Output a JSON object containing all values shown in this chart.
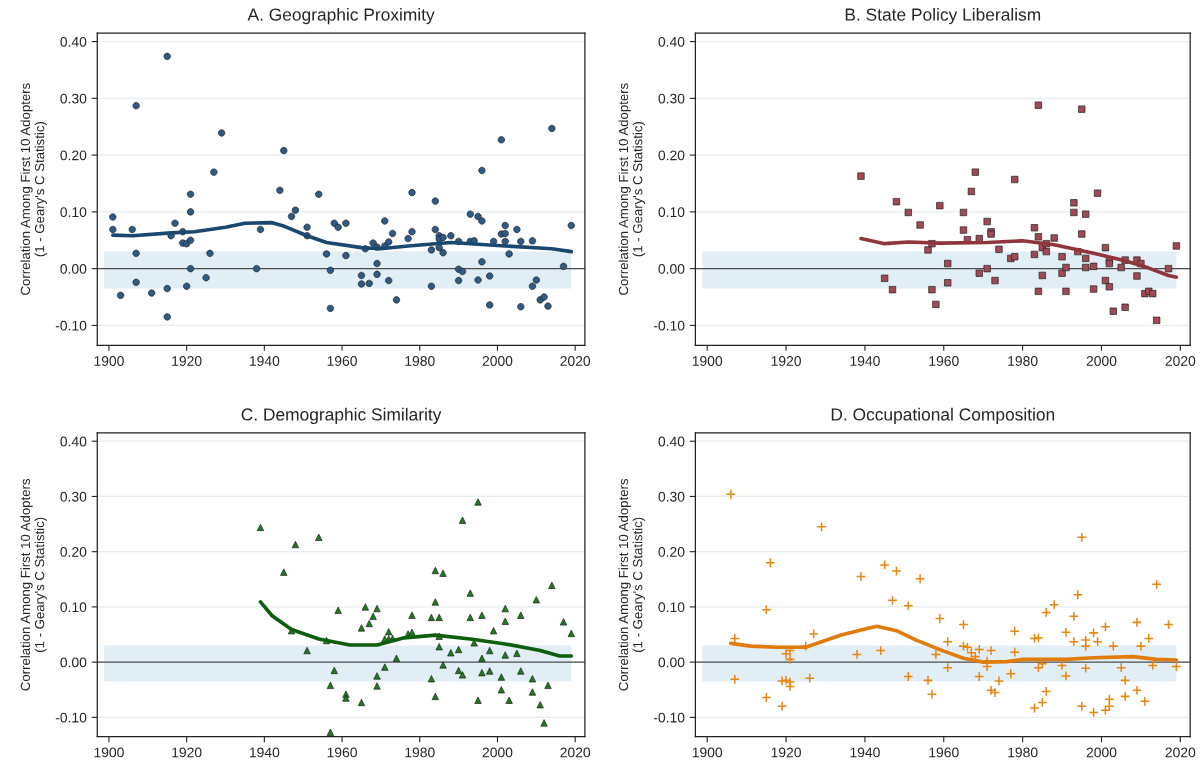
{
  "chart_data": [
    {
      "type": "scatter",
      "title": "A. Geographic Proximity",
      "ylabel": "Correlation Among First 10 Adopters\n(1 - Geary's C Statistic)",
      "xlim": [
        1897,
        2022.5
      ],
      "ylim": [
        -0.135,
        0.415
      ],
      "xticks": [
        1900,
        1920,
        1940,
        1960,
        1980,
        2000,
        2020
      ],
      "yticks": [
        {
          "value": -0.1,
          "label": "-0.10"
        },
        {
          "value": 0.0,
          "label": "0.00"
        },
        {
          "value": 0.1,
          "label": "0.10"
        },
        {
          "value": 0.2,
          "label": "0.20"
        },
        {
          "value": 0.3,
          "label": "0.30"
        },
        {
          "value": 0.4,
          "label": "0.40"
        }
      ],
      "grid": "y",
      "bands": [
        {
          "axis": "y",
          "from": -0.035,
          "to": 0.03,
          "color": "#e1eef5"
        }
      ],
      "ref_lines": [
        {
          "axis": "y",
          "value": 0,
          "color": "#4d4d4d"
        }
      ],
      "series": [
        {
          "marker": "circle",
          "color": "#2e5a84",
          "x": [
            1901,
            1901,
            1903,
            1906,
            1907,
            1907,
            1907,
            1911,
            1915,
            1915,
            1915,
            1916,
            1917,
            1919,
            1919,
            1920,
            1920,
            1921,
            1921,
            1921,
            1921,
            1925,
            1926,
            1927,
            1929,
            1938,
            1939,
            1944,
            1945,
            1947,
            1948,
            1951,
            1951,
            1954,
            1956,
            1957,
            1957,
            1958,
            1959,
            1961,
            1961,
            1965,
            1965,
            1966,
            1967,
            1968,
            1969,
            1969,
            1969,
            1971,
            1971,
            1972,
            1972,
            1973,
            1974,
            1977,
            1978,
            1978,
            1983,
            1983,
            1984,
            1984,
            1985,
            1985,
            1985,
            1986,
            1986,
            1988,
            1990,
            1990,
            1990,
            1991,
            1993,
            1993,
            1994,
            1995,
            1995,
            1996,
            1996,
            1996,
            1998,
            1998,
            1999,
            2001,
            2001,
            2002,
            2002,
            2002,
            2003,
            2005,
            2006,
            2006,
            2009,
            2009,
            2010,
            2011,
            2012,
            2013,
            2014,
            2017,
            2019
          ],
          "values": [
            0.091,
            0.069,
            -0.047,
            0.069,
            0.287,
            0.027,
            -0.024,
            -0.043,
            0.374,
            -0.035,
            -0.085,
            0.058,
            0.08,
            0.065,
            0.045,
            0.044,
            -0.031,
            0.131,
            0.1,
            0.05,
            0.0,
            -0.016,
            0.027,
            0.17,
            0.239,
            0.0,
            0.069,
            0.138,
            0.208,
            0.092,
            0.103,
            0.073,
            0.058,
            0.131,
            0.026,
            -0.003,
            -0.07,
            0.08,
            0.073,
            0.08,
            0.023,
            -0.012,
            -0.027,
            0.035,
            -0.026,
            0.045,
            0.038,
            0.009,
            -0.01,
            0.084,
            0.04,
            0.047,
            -0.021,
            0.062,
            -0.055,
            0.053,
            0.134,
            0.065,
            0.033,
            -0.031,
            0.119,
            0.069,
            0.058,
            0.052,
            0.037,
            0.055,
            0.028,
            0.058,
            0.048,
            -0.001,
            -0.021,
            -0.005,
            0.096,
            0.048,
            0.049,
            0.092,
            -0.02,
            0.173,
            0.084,
            0.012,
            -0.013,
            -0.064,
            0.048,
            0.227,
            0.061,
            0.076,
            0.062,
            0.048,
            0.026,
            0.069,
            0.048,
            -0.067,
            0.049,
            -0.031,
            -0.02,
            -0.055,
            -0.05,
            -0.066,
            0.247,
            0.004,
            0.076
          ]
        },
        {
          "type": "line",
          "marker": "none",
          "color": "#1a476f",
          "x": [
            1901,
            1906,
            1916,
            1922,
            1930,
            1935,
            1942,
            1945,
            1951,
            1956,
            1965,
            1970,
            1977,
            1988,
            2002,
            2014,
            2019
          ],
          "values": [
            0.059,
            0.058,
            0.063,
            0.065,
            0.073,
            0.08,
            0.081,
            0.075,
            0.058,
            0.046,
            0.037,
            0.035,
            0.04,
            0.046,
            0.04,
            0.035,
            0.03
          ]
        }
      ]
    },
    {
      "type": "scatter",
      "title": "B. State Policy Liberalism",
      "ylabel": "Correlation Among First 10 Adopters\n(1 - Geary's C Statistic)",
      "xlim": [
        1897,
        2022.5
      ],
      "ylim": [
        -0.135,
        0.415
      ],
      "xticks": [
        1900,
        1920,
        1940,
        1960,
        1980,
        2000,
        2020
      ],
      "yticks": [
        {
          "value": -0.1,
          "label": "-0.10"
        },
        {
          "value": 0.0,
          "label": "0.00"
        },
        {
          "value": 0.1,
          "label": "0.10"
        },
        {
          "value": 0.2,
          "label": "0.20"
        },
        {
          "value": 0.3,
          "label": "0.30"
        },
        {
          "value": 0.4,
          "label": "0.40"
        }
      ],
      "grid": "y",
      "bands": [
        {
          "axis": "y",
          "from": -0.035,
          "to": 0.03,
          "color": "#e1eef5"
        }
      ],
      "ref_lines": [
        {
          "axis": "y",
          "value": 0,
          "color": "#4d4d4d"
        }
      ],
      "series": [
        {
          "marker": "square",
          "color": "#a04a55",
          "x": [
            1939,
            1945,
            1947,
            1948,
            1951,
            1954,
            1956,
            1957,
            1957,
            1958,
            1959,
            1961,
            1961,
            1965,
            1965,
            1966,
            1967,
            1968,
            1969,
            1969,
            1971,
            1971,
            1972,
            1972,
            1973,
            1974,
            1977,
            1978,
            1978,
            1983,
            1983,
            1984,
            1984,
            1984,
            1985,
            1985,
            1986,
            1986,
            1988,
            1990,
            1990,
            1991,
            1991,
            1993,
            1993,
            1994,
            1995,
            1995,
            1996,
            1996,
            1996,
            1998,
            1998,
            1999,
            2001,
            2001,
            2002,
            2002,
            2002,
            2003,
            2005,
            2006,
            2006,
            2009,
            2009,
            2010,
            2011,
            2012,
            2013,
            2014,
            2017,
            2019
          ],
          "values": [
            0.163,
            -0.017,
            -0.037,
            0.118,
            0.099,
            0.077,
            0.033,
            0.044,
            -0.037,
            -0.063,
            0.111,
            0.009,
            -0.025,
            0.099,
            0.068,
            0.051,
            0.136,
            0.17,
            0.053,
            -0.008,
            0.083,
            0.0,
            0.065,
            0.061,
            -0.021,
            0.034,
            0.018,
            0.157,
            0.021,
            0.072,
            0.025,
            0.288,
            0.056,
            -0.04,
            0.037,
            -0.012,
            0.044,
            0.03,
            0.054,
            0.021,
            -0.008,
            0.002,
            -0.04,
            0.116,
            0.099,
            0.03,
            0.281,
            0.061,
            0.096,
            0.018,
            0.002,
            0.004,
            -0.036,
            0.133,
            0.037,
            -0.021,
            0.015,
            0.009,
            -0.032,
            -0.075,
            0.002,
            0.015,
            -0.068,
            0.015,
            -0.013,
            0.009,
            -0.044,
            -0.04,
            -0.044,
            -0.091,
            0.0,
            0.04
          ]
        },
        {
          "type": "line",
          "marker": "none",
          "color": "#90353b",
          "x": [
            1939,
            1945,
            1951,
            1959,
            1971,
            1980,
            1988,
            1998,
            2006,
            2012,
            2017,
            2019
          ],
          "values": [
            0.053,
            0.044,
            0.047,
            0.045,
            0.046,
            0.049,
            0.042,
            0.027,
            0.014,
            0.001,
            -0.012,
            -0.015
          ]
        }
      ]
    },
    {
      "type": "scatter",
      "title": "C. Demographic Similarity",
      "ylabel": "Correlation Among First 10 Adopters\n(1 - Geary's C Statistic)",
      "xlim": [
        1897,
        2022.5
      ],
      "ylim": [
        -0.135,
        0.415
      ],
      "xticks": [
        1900,
        1920,
        1940,
        1960,
        1980,
        2000,
        2020
      ],
      "yticks": [
        {
          "value": -0.1,
          "label": "-0.10"
        },
        {
          "value": 0.0,
          "label": "0.00"
        },
        {
          "value": 0.1,
          "label": "0.10"
        },
        {
          "value": 0.2,
          "label": "0.20"
        },
        {
          "value": 0.3,
          "label": "0.30"
        },
        {
          "value": 0.4,
          "label": "0.40"
        }
      ],
      "grid": "y",
      "bands": [
        {
          "axis": "y",
          "from": -0.035,
          "to": 0.03,
          "color": "#e1eef5"
        }
      ],
      "ref_lines": [
        {
          "axis": "y",
          "value": 0,
          "color": "#4d4d4d"
        }
      ],
      "series": [
        {
          "marker": "triangle",
          "color": "#1f7a1f",
          "x": [
            1939,
            1945,
            1947,
            1948,
            1951,
            1954,
            1956,
            1957,
            1957,
            1958,
            1959,
            1961,
            1961,
            1965,
            1965,
            1966,
            1967,
            1968,
            1969,
            1969,
            1969,
            1971,
            1971,
            1972,
            1972,
            1973,
            1974,
            1977,
            1978,
            1978,
            1983,
            1983,
            1984,
            1984,
            1984,
            1985,
            1985,
            1985,
            1986,
            1986,
            1988,
            1990,
            1990,
            1991,
            1991,
            1993,
            1993,
            1994,
            1995,
            1995,
            1996,
            1996,
            1996,
            1998,
            1998,
            1999,
            2001,
            2001,
            2002,
            2002,
            2002,
            2003,
            2005,
            2006,
            2006,
            2009,
            2009,
            2010,
            2011,
            2012,
            2013,
            2014,
            2017,
            2019
          ],
          "values": [
            0.244,
            0.163,
            0.057,
            0.213,
            0.021,
            0.226,
            0.039,
            -0.042,
            -0.127,
            -0.015,
            0.094,
            -0.058,
            -0.065,
            0.062,
            -0.073,
            0.1,
            0.07,
            0.083,
            0.097,
            -0.025,
            -0.043,
            0.042,
            -0.009,
            0.055,
            0.042,
            0.043,
            0.007,
            0.051,
            0.085,
            0.054,
            0.081,
            -0.03,
            0.166,
            0.109,
            -0.062,
            0.081,
            0.047,
            0.028,
            0.161,
            -0.005,
            0.017,
            0.023,
            -0.015,
            0.257,
            -0.023,
            0.125,
            0.081,
            0.035,
            0.29,
            -0.069,
            0.085,
            0.007,
            -0.019,
            0.021,
            -0.016,
            0.057,
            -0.027,
            -0.05,
            0.097,
            0.074,
            0.013,
            -0.069,
            0.016,
            0.085,
            -0.016,
            -0.03,
            -0.054,
            0.113,
            -0.077,
            -0.11,
            -0.042,
            0.139,
            0.073,
            0.052
          ]
        },
        {
          "type": "line",
          "marker": "none",
          "color": "#0d5e0d",
          "x": [
            1939,
            1942,
            1947,
            1954,
            1962,
            1969,
            1976,
            1984,
            1993,
            2002,
            2011,
            2016,
            2019
          ],
          "values": [
            0.109,
            0.084,
            0.059,
            0.042,
            0.031,
            0.031,
            0.044,
            0.049,
            0.042,
            0.033,
            0.021,
            0.011,
            0.011
          ]
        }
      ]
    },
    {
      "type": "scatter",
      "title": "D. Occupational Composition",
      "ylabel": "Correlation Among First 10 Adopters\n(1 - Geary's C Statistic)",
      "xlim": [
        1897,
        2022.5
      ],
      "ylim": [
        -0.135,
        0.415
      ],
      "xticks": [
        1900,
        1920,
        1940,
        1960,
        1980,
        2000,
        2020
      ],
      "yticks": [
        {
          "value": -0.1,
          "label": "-0.10"
        },
        {
          "value": 0.0,
          "label": "0.00"
        },
        {
          "value": 0.1,
          "label": "0.10"
        },
        {
          "value": 0.2,
          "label": "0.20"
        },
        {
          "value": 0.3,
          "label": "0.30"
        },
        {
          "value": 0.4,
          "label": "0.40"
        }
      ],
      "grid": "y",
      "bands": [
        {
          "axis": "y",
          "from": -0.035,
          "to": 0.03,
          "color": "#e1eef5"
        }
      ],
      "ref_lines": [
        {
          "axis": "y",
          "value": 0,
          "color": "#4d4d4d"
        }
      ],
      "series": [
        {
          "marker": "cross",
          "color": "#e8860f",
          "x": [
            1906,
            1907,
            1907,
            1915,
            1915,
            1916,
            1919,
            1919,
            1920,
            1920,
            1921,
            1921,
            1921,
            1921,
            1925,
            1926,
            1927,
            1929,
            1938,
            1939,
            1944,
            1945,
            1947,
            1948,
            1951,
            1951,
            1954,
            1956,
            1957,
            1958,
            1959,
            1961,
            1961,
            1965,
            1965,
            1966,
            1967,
            1968,
            1969,
            1969,
            1971,
            1971,
            1972,
            1972,
            1973,
            1974,
            1977,
            1978,
            1978,
            1983,
            1983,
            1984,
            1984,
            1985,
            1985,
            1986,
            1986,
            1988,
            1990,
            1991,
            1991,
            1993,
            1993,
            1994,
            1995,
            1995,
            1996,
            1996,
            1996,
            1998,
            1998,
            1999,
            2001,
            2001,
            2002,
            2002,
            2003,
            2005,
            2006,
            2006,
            2009,
            2009,
            2010,
            2011,
            2012,
            2013,
            2014,
            2017,
            2019
          ],
          "values": [
            0.304,
            0.043,
            -0.031,
            0.095,
            -0.064,
            0.18,
            -0.08,
            -0.034,
            0.015,
            -0.033,
            0.021,
            0.005,
            -0.036,
            -0.044,
            0.029,
            -0.029,
            0.051,
            0.245,
            0.014,
            0.155,
            0.021,
            0.176,
            0.112,
            0.165,
            0.102,
            -0.026,
            0.151,
            -0.033,
            -0.058,
            0.014,
            0.079,
            0.037,
            -0.01,
            0.068,
            0.029,
            0.027,
            0.017,
            0.01,
            0.023,
            -0.026,
            0.002,
            -0.008,
            0.021,
            -0.051,
            -0.055,
            -0.034,
            -0.021,
            0.056,
            0.018,
            0.043,
            -0.083,
            0.044,
            -0.01,
            -0.073,
            -0.003,
            0.09,
            -0.053,
            0.104,
            -0.006,
            0.054,
            -0.025,
            0.083,
            0.037,
            0.122,
            0.226,
            -0.08,
            0.04,
            0.029,
            -0.011,
            0.053,
            -0.091,
            0.037,
            0.064,
            -0.087,
            -0.067,
            -0.08,
            0.029,
            -0.01,
            -0.033,
            -0.062,
            0.072,
            -0.051,
            0.029,
            -0.071,
            0.043,
            -0.006,
            0.141,
            0.068,
            -0.008
          ]
        },
        {
          "type": "line",
          "marker": "none",
          "color": "#e07b0c",
          "x": [
            1906,
            1911,
            1918,
            1925,
            1929,
            1934,
            1939,
            1943,
            1948,
            1953,
            1960,
            1965,
            1970,
            1976,
            1980,
            1991,
            1998,
            2008,
            2014,
            2019
          ],
          "values": [
            0.034,
            0.029,
            0.027,
            0.027,
            0.037,
            0.049,
            0.058,
            0.065,
            0.057,
            0.04,
            0.02,
            0.007,
            0.0,
            0.001,
            0.005,
            0.005,
            0.008,
            0.01,
            0.005,
            0.004
          ]
        }
      ]
    }
  ]
}
